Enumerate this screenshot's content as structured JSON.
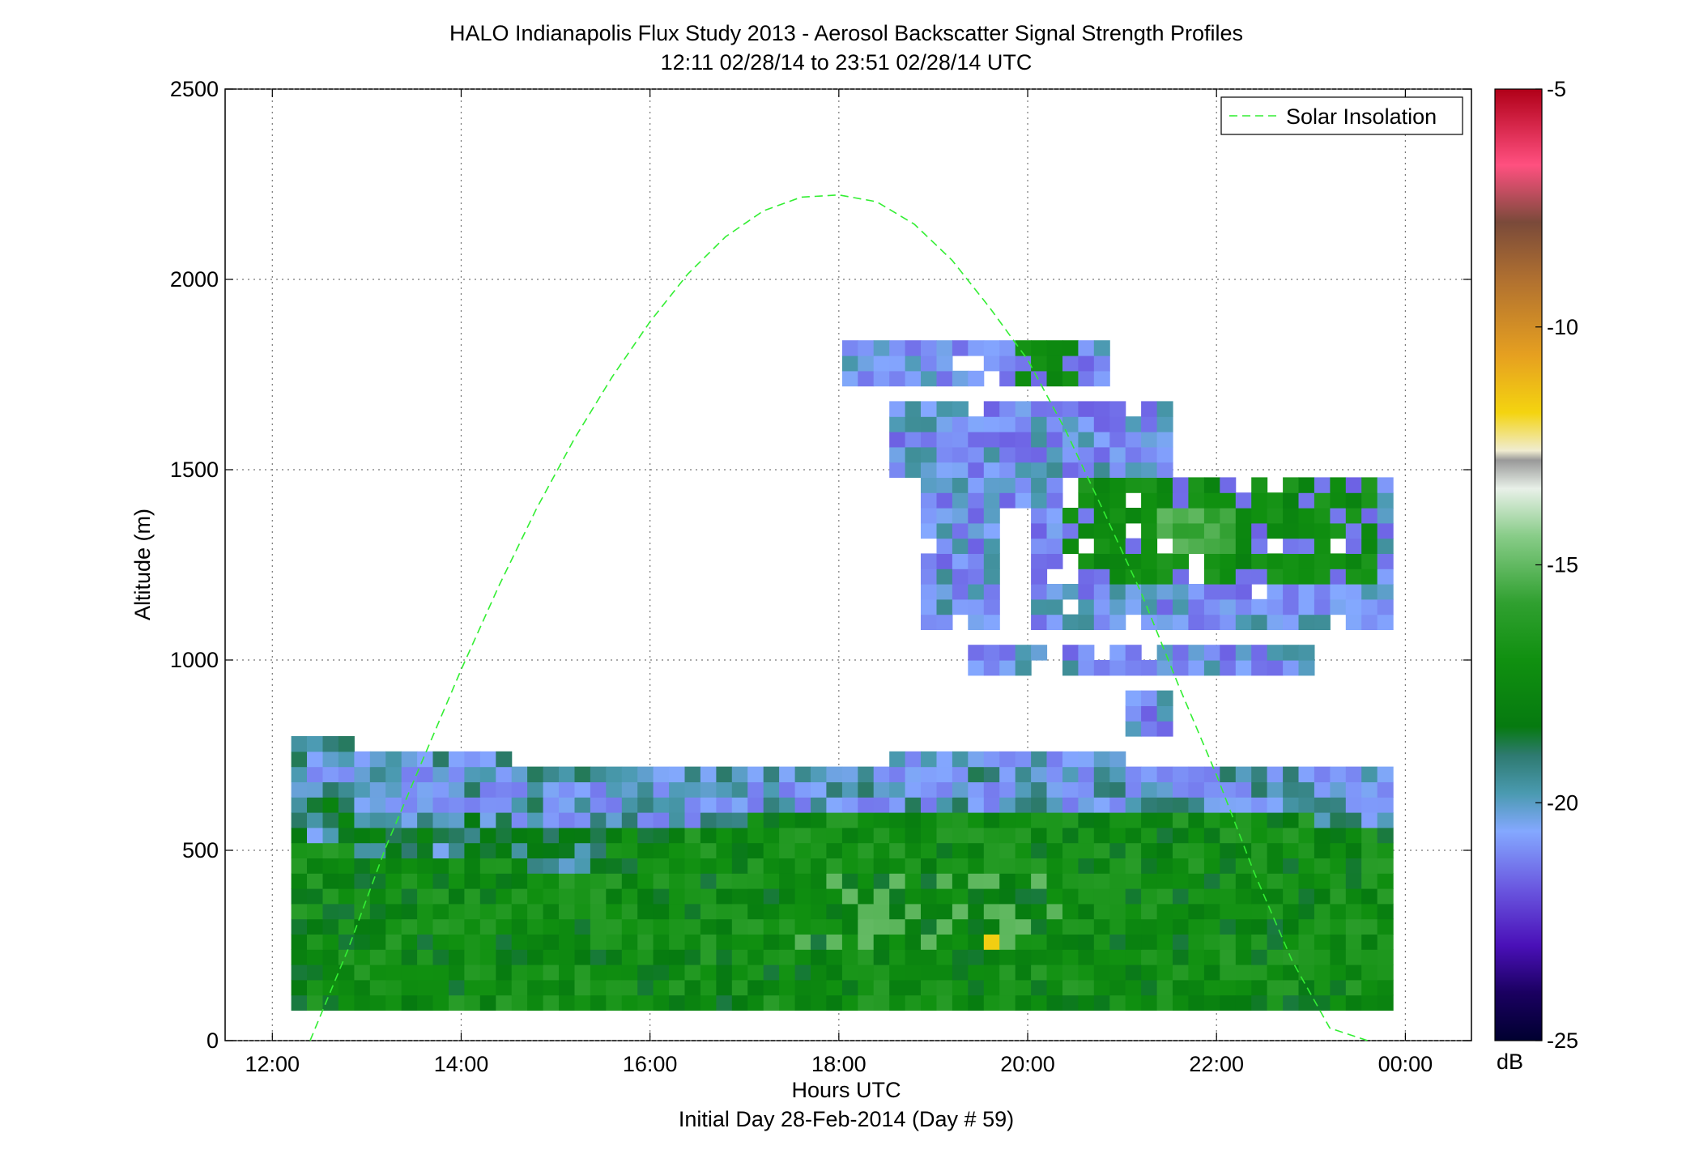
{
  "chart_data": {
    "type": "heatmap",
    "title": "HALO Indianapolis Flux Study 2013 - Aerosol Backscatter Signal Strength Profiles",
    "subtitle": "12:11 02/28/14 to 23:51 02/28/14  UTC",
    "xlabel": "Hours UTC",
    "xlabel2": "Initial Day 28-Feb-2014 (Day # 59)",
    "ylabel": "Altitude (m)",
    "xlim": [
      11.5,
      24.7
    ],
    "ylim": [
      0,
      2500
    ],
    "x_ticks": [
      12,
      14,
      16,
      18,
      20,
      22,
      24
    ],
    "x_tick_labels": [
      "12:00",
      "14:00",
      "16:00",
      "18:00",
      "20:00",
      "22:00",
      "00:00"
    ],
    "y_ticks": [
      0,
      500,
      1000,
      1500,
      2000,
      2500
    ],
    "y_tick_labels": [
      "0",
      "500",
      "1000",
      "1500",
      "2000",
      "2500"
    ],
    "grid": true,
    "legend": {
      "position": "top-right",
      "entries": [
        "Solar Insolation"
      ]
    },
    "colorbar": {
      "label": "dB",
      "range": [
        -25,
        -5
      ],
      "ticks": [
        -5,
        -10,
        -15,
        -20,
        -25
      ],
      "tick_labels": [
        "-5",
        "-10",
        "-15",
        "-20",
        "-25"
      ]
    },
    "solar_insolation": {
      "hours": [
        12.4,
        12.8,
        13.2,
        13.6,
        14.0,
        14.4,
        14.8,
        15.2,
        15.6,
        16.0,
        16.4,
        16.8,
        17.2,
        17.6,
        18.0,
        18.4,
        18.8,
        19.2,
        19.6,
        20.0,
        20.4,
        20.8,
        21.2,
        21.6,
        22.0,
        22.4,
        22.8,
        23.2,
        23.6
      ],
      "altitude": [
        0,
        239,
        507,
        742,
        975,
        1195,
        1399,
        1582,
        1744,
        1889,
        2014,
        2112,
        2180,
        2216,
        2222,
        2204,
        2145,
        2050,
        1925,
        1789,
        1604,
        1393,
        1178,
        932,
        698,
        441,
        210,
        33,
        -40
      ]
    },
    "backscatter": {
      "time_start": 12.2,
      "time_step": 0.1667,
      "alt_start": 80,
      "alt_step": 40,
      "note_rows": "rows ordered bottom to top, columns ordered left to right",
      "values_db": []
    }
  }
}
